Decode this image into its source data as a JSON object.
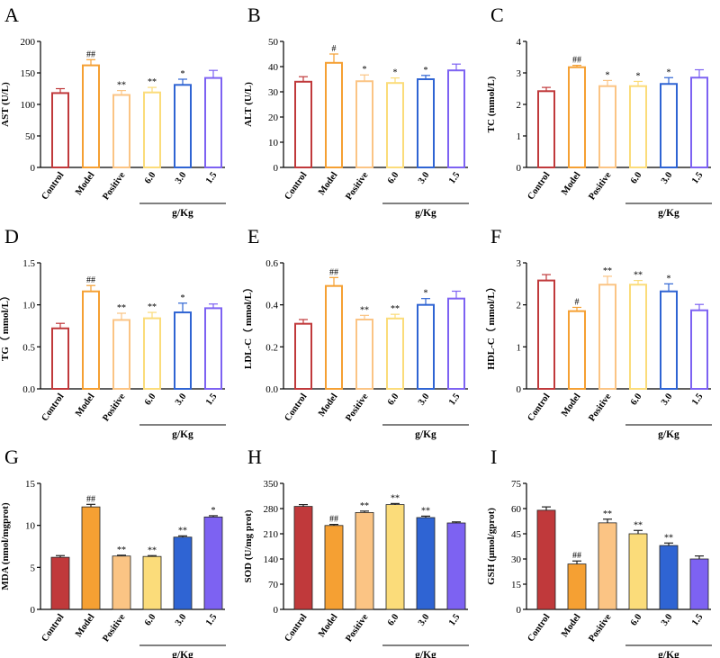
{
  "figure": {
    "categories": [
      "Control",
      "Model",
      "Positive",
      "6.0",
      "3.0",
      "1.5"
    ],
    "dose_unit": "g/Kg",
    "palette": {
      "control": "#C0393B",
      "model": "#F5A033",
      "positive": "#FBC484",
      "dose_high": "#FBDC7A",
      "dose_mid": "#2F64D3",
      "dose_low": "#7D62F2"
    }
  },
  "chart_data": [
    {
      "letter": "A",
      "type": "bar",
      "style": "outline",
      "ylabel": "AST (U/L)",
      "ylim": [
        0,
        200
      ],
      "yticks": [
        "0",
        "50",
        "100",
        "150",
        "200"
      ],
      "values": [
        118,
        162,
        115,
        119,
        131,
        142
      ],
      "errors": [
        7,
        9,
        7,
        8,
        9,
        12
      ],
      "marks": [
        "",
        "##",
        "**",
        "**",
        "*",
        ""
      ]
    },
    {
      "letter": "B",
      "type": "bar",
      "style": "outline",
      "ylabel": "ALT (U/L)",
      "ylim": [
        0,
        50
      ],
      "yticks": [
        "0",
        "10",
        "20",
        "30",
        "40",
        "50"
      ],
      "values": [
        34,
        41.5,
        34.2,
        33.5,
        35,
        38.5
      ],
      "errors": [
        2,
        3.5,
        2.5,
        2,
        1.5,
        2.5
      ],
      "marks": [
        "",
        "#",
        "*",
        "*",
        "*",
        ""
      ]
    },
    {
      "letter": "C",
      "type": "bar",
      "style": "outline",
      "ylabel": "TC (mmol/L)",
      "ylim": [
        0,
        4
      ],
      "yticks": [
        "0",
        "1",
        "2",
        "3",
        "4"
      ],
      "values": [
        2.42,
        3.18,
        2.58,
        2.58,
        2.65,
        2.85
      ],
      "errors": [
        0.12,
        0.06,
        0.18,
        0.15,
        0.2,
        0.25
      ],
      "marks": [
        "",
        "##",
        "*",
        "*",
        "*",
        ""
      ]
    },
    {
      "letter": "D",
      "type": "bar",
      "style": "outline",
      "ylabel": "TG（ mmol/L）",
      "ylim": [
        0,
        1.5
      ],
      "yticks": [
        "0.0",
        "0.5",
        "1.0",
        "1.5"
      ],
      "values": [
        0.72,
        1.16,
        0.82,
        0.84,
        0.91,
        0.96
      ],
      "errors": [
        0.06,
        0.07,
        0.08,
        0.07,
        0.11,
        0.05
      ],
      "marks": [
        "",
        "##",
        "**",
        "**",
        "*",
        ""
      ]
    },
    {
      "letter": "E",
      "type": "bar",
      "style": "outline",
      "ylabel": "LDL-C（ mmol/L）",
      "ylim": [
        0,
        0.6
      ],
      "yticks": [
        "0.0",
        "0.2",
        "0.4",
        "0.6"
      ],
      "values": [
        0.31,
        0.49,
        0.33,
        0.335,
        0.4,
        0.43
      ],
      "errors": [
        0.02,
        0.04,
        0.02,
        0.02,
        0.03,
        0.035
      ],
      "marks": [
        "",
        "##",
        "**",
        "**",
        "*",
        ""
      ]
    },
    {
      "letter": "F",
      "type": "bar",
      "style": "outline",
      "ylabel": "HDL-C（ mmol/L）",
      "ylim": [
        0,
        3
      ],
      "yticks": [
        "0",
        "1",
        "2",
        "3"
      ],
      "values": [
        2.58,
        1.85,
        2.48,
        2.48,
        2.32,
        1.87
      ],
      "errors": [
        0.14,
        0.09,
        0.2,
        0.1,
        0.18,
        0.14
      ],
      "marks": [
        "",
        "#",
        "**",
        "**",
        "*",
        ""
      ]
    },
    {
      "letter": "G",
      "type": "bar",
      "style": "filled",
      "ylabel": "MDA (nmol/mgprot)",
      "ylim": [
        0,
        15
      ],
      "yticks": [
        "0",
        "5",
        "10",
        "15"
      ],
      "values": [
        6.2,
        12.2,
        6.35,
        6.3,
        8.6,
        11.0
      ],
      "errors": [
        0.2,
        0.3,
        0.1,
        0.1,
        0.15,
        0.15
      ],
      "marks": [
        "",
        "##",
        "**",
        "**",
        "**",
        "*"
      ]
    },
    {
      "letter": "H",
      "type": "bar",
      "style": "filled",
      "ylabel": "SOD (U/mg prot)",
      "ylim": [
        0,
        350
      ],
      "yticks": [
        "0",
        "70",
        "140",
        "210",
        "280",
        "350"
      ],
      "values": [
        286,
        233,
        269,
        291,
        255,
        240
      ],
      "errors": [
        5,
        3,
        4,
        3,
        4,
        3
      ],
      "marks": [
        "",
        "##",
        "**",
        "**",
        "**",
        ""
      ]
    },
    {
      "letter": "I",
      "type": "bar",
      "style": "filled",
      "ylabel": "GSH (μmol/gprot)",
      "ylim": [
        0,
        75
      ],
      "yticks": [
        "0",
        "15",
        "30",
        "45",
        "60",
        "75"
      ],
      "values": [
        59,
        27,
        51.5,
        45,
        38,
        30
      ],
      "errors": [
        2,
        1.8,
        2.2,
        2,
        1.5,
        1.8
      ],
      "marks": [
        "",
        "##",
        "**",
        "**",
        "**",
        ""
      ]
    }
  ]
}
